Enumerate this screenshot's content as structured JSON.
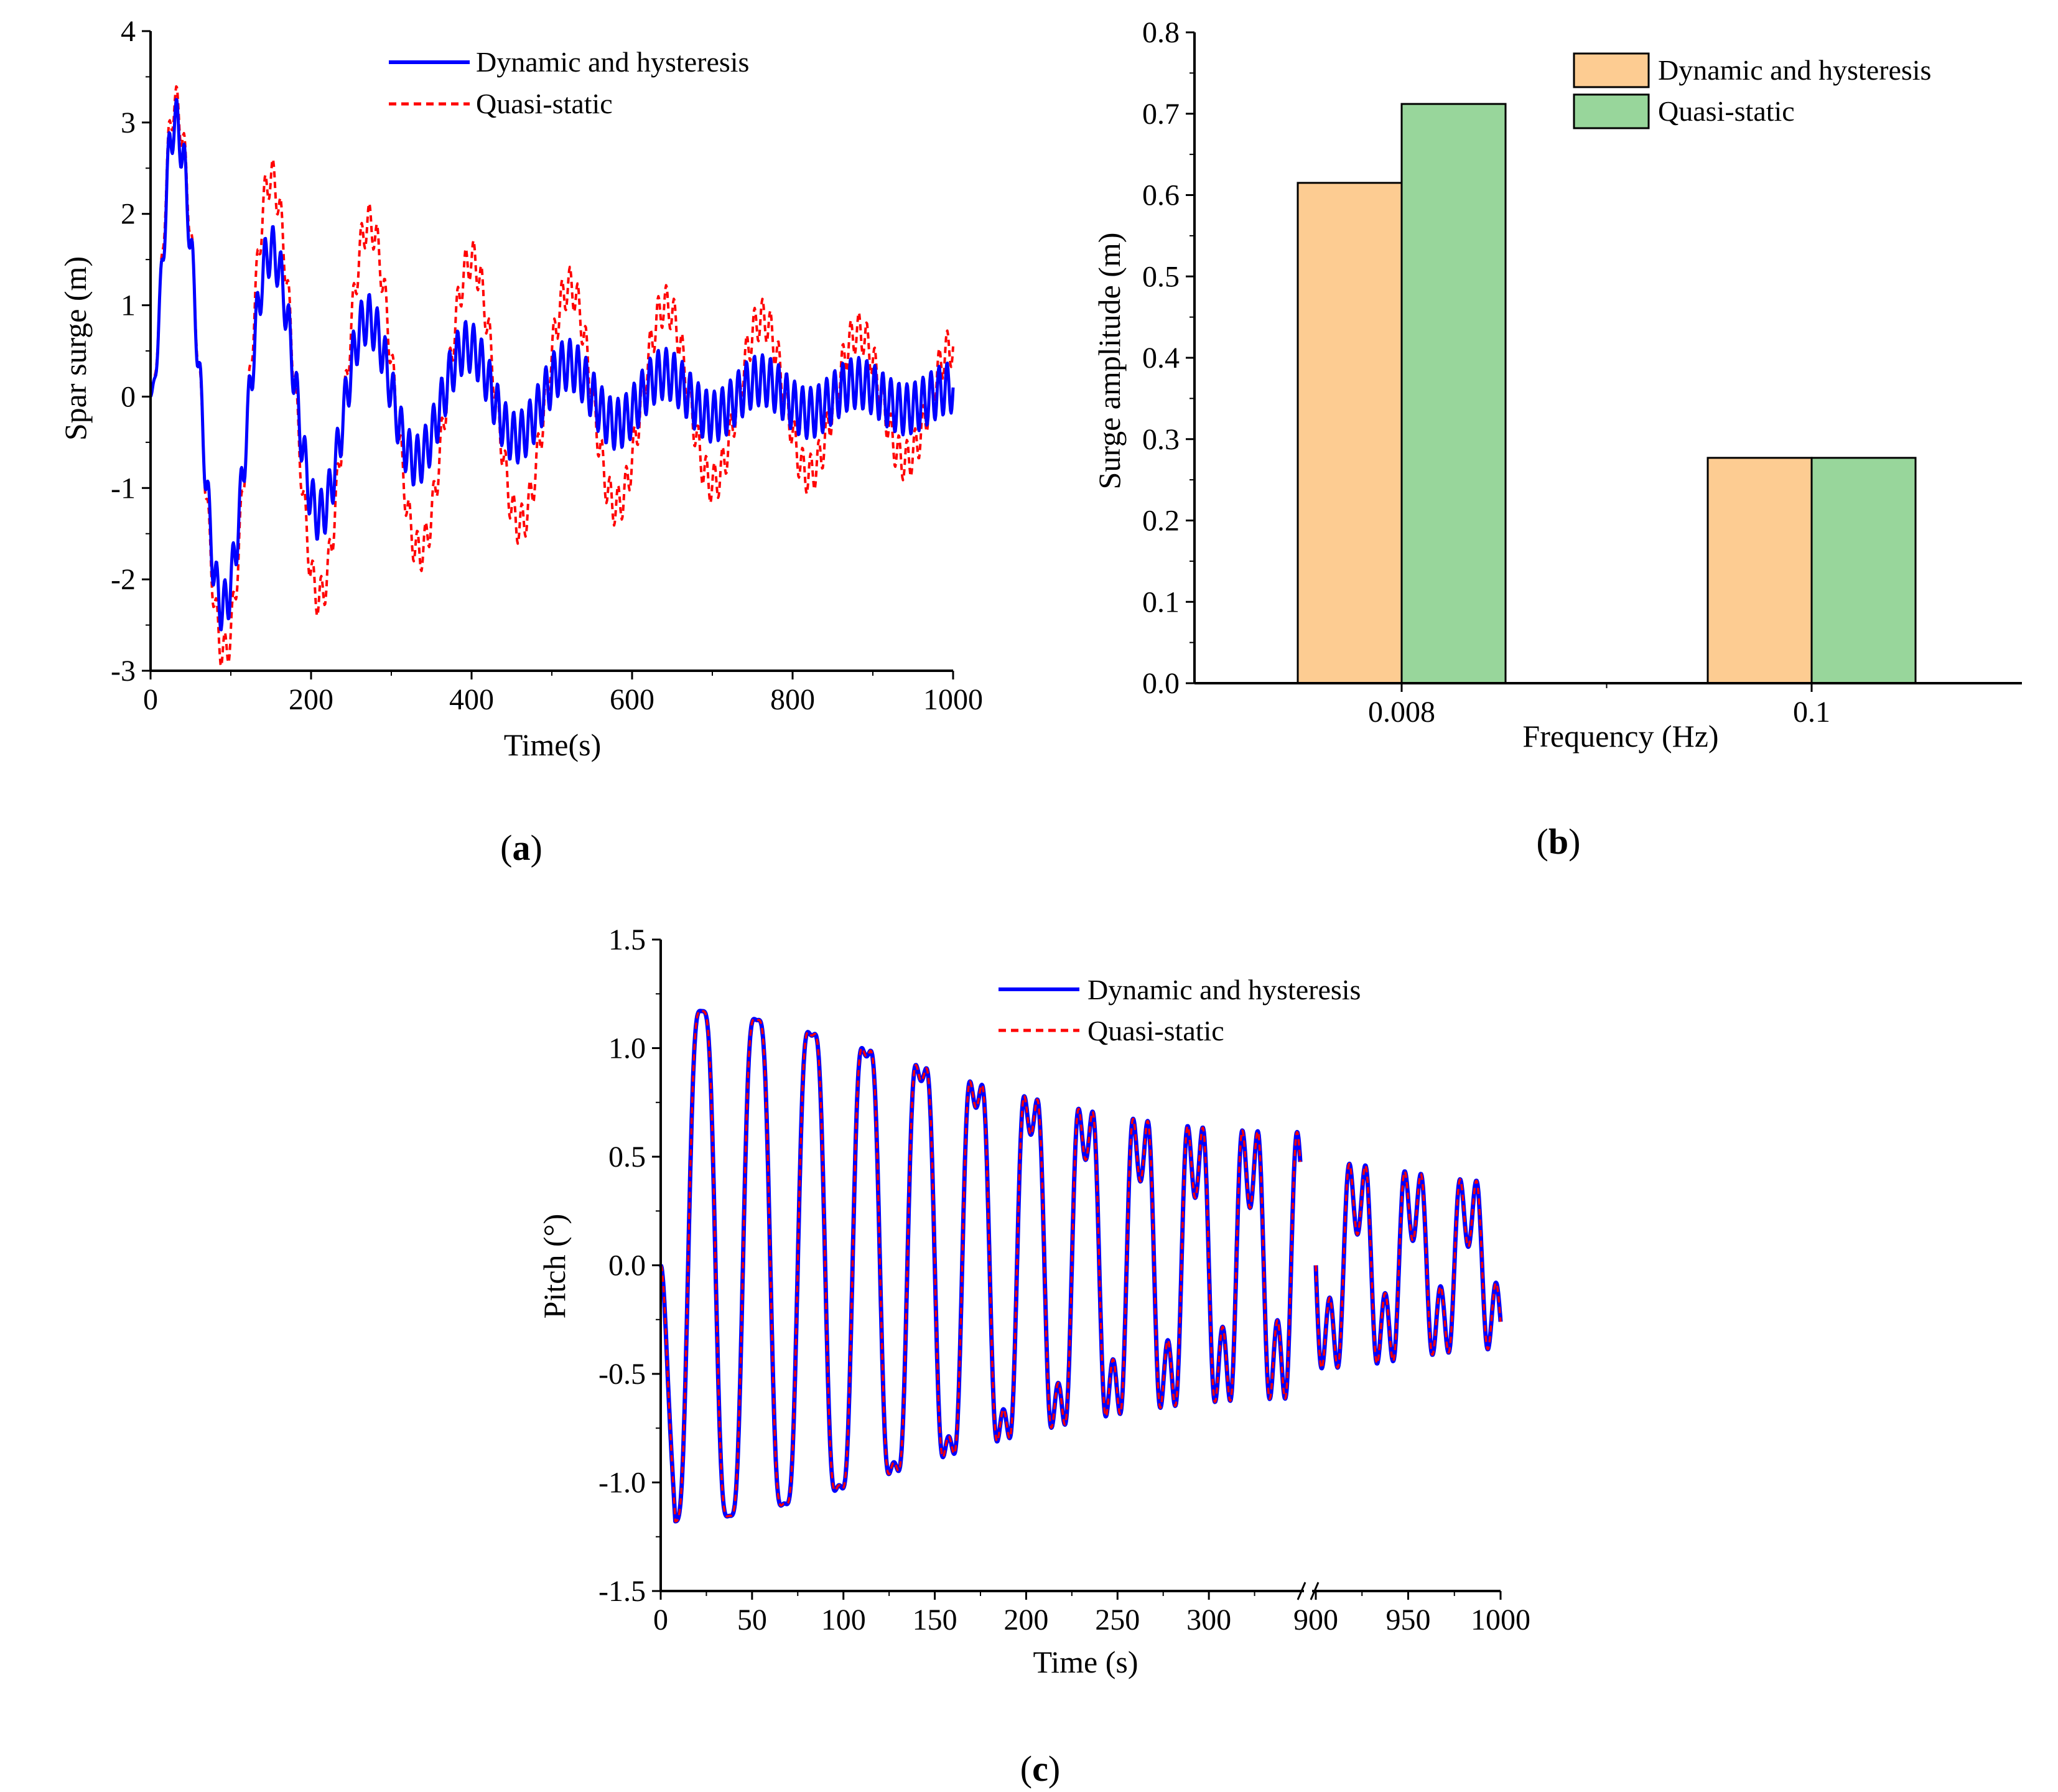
{
  "colors": {
    "dynamic_line": "#0000ff",
    "quasi_line": "#ff0000",
    "bar_dynamic": "#fdcc92",
    "bar_quasi": "#98d69b",
    "axis": "#000000"
  },
  "panel_labels": [
    "a",
    "b",
    "c"
  ],
  "chart_data": [
    {
      "type": "line",
      "panel": "a",
      "xlabel": "Time(s)",
      "ylabel": "Spar surge (m)",
      "xlim": [
        0,
        1000
      ],
      "ylim": [
        -3,
        4
      ],
      "xticks": [
        0,
        200,
        400,
        600,
        800,
        1000
      ],
      "yticks": [
        -3,
        -2,
        -1,
        0,
        1,
        2,
        3,
        4
      ],
      "legend_position": "top-right",
      "series": [
        {
          "name": "Dynamic and hysteresis",
          "style": "solid",
          "slow_envelope": [
            [
              0,
              0
            ],
            [
              30,
              3.0
            ],
            [
              90,
              -2.3
            ],
            [
              150,
              1.6
            ],
            [
              210,
              -1.3
            ],
            [
              270,
              0.85
            ],
            [
              330,
              -0.7
            ],
            [
              395,
              0.55
            ],
            [
              455,
              -0.45
            ],
            [
              520,
              0.35
            ],
            [
              580,
              -0.3
            ],
            [
              640,
              0.25
            ],
            [
              700,
              -0.22
            ],
            [
              760,
              0.18
            ],
            [
              820,
              -0.18
            ],
            [
              880,
              0.15
            ],
            [
              940,
              -0.14
            ],
            [
              1000,
              0.1
            ]
          ],
          "wave_amplitude": 0.28,
          "wave_period_s": 10
        },
        {
          "name": "Quasi-static",
          "style": "dashed",
          "slow_envelope": [
            [
              0,
              0
            ],
            [
              30,
              3.2
            ],
            [
              92,
              -2.8
            ],
            [
              150,
              2.4
            ],
            [
              210,
              -2.2
            ],
            [
              272,
              1.9
            ],
            [
              335,
              -1.7
            ],
            [
              400,
              1.5
            ],
            [
              460,
              -1.4
            ],
            [
              522,
              1.2
            ],
            [
              580,
              -1.2
            ],
            [
              642,
              1.0
            ],
            [
              700,
              -0.95
            ],
            [
              762,
              0.85
            ],
            [
              820,
              -0.85
            ],
            [
              882,
              0.7
            ],
            [
              940,
              -0.7
            ],
            [
              1000,
              0.55
            ]
          ],
          "wave_amplitude": 0.22,
          "wave_period_s": 10
        }
      ]
    },
    {
      "type": "bar",
      "panel": "b",
      "xlabel": "Frequency (Hz)",
      "ylabel": "Surge amplitude (m)",
      "categories": [
        "0.008",
        "0.1"
      ],
      "ylim": [
        0,
        0.8
      ],
      "yticks": [
        "0.0",
        "0.1",
        "0.2",
        "0.3",
        "0.4",
        "0.5",
        "0.6",
        "0.7",
        "0.8"
      ],
      "legend_position": "top-right",
      "series": [
        {
          "name": "Dynamic and hysteresis",
          "values": [
            0.615,
            0.277
          ]
        },
        {
          "name": "Quasi-static",
          "values": [
            0.712,
            0.277
          ]
        }
      ]
    },
    {
      "type": "line",
      "panel": "c",
      "xlabel": "Time (s)",
      "ylabel": "Pitch (°)",
      "ylim": [
        -1.5,
        1.5
      ],
      "yticks": [
        "-1.5",
        "-1.0",
        "-0.5",
        "0.0",
        "0.5",
        "1.0",
        "1.5"
      ],
      "x_segments": [
        [
          0,
          350
        ],
        [
          900,
          1000
        ]
      ],
      "xticks": [
        "0",
        "50",
        "100",
        "150",
        "200",
        "250",
        "300",
        "900",
        "950",
        "1000"
      ],
      "axis_break": true,
      "legend_position": "top-right",
      "series": [
        {
          "name": "Dynamic and hysteresis",
          "style": "solid"
        },
        {
          "name": "Quasi-static",
          "style": "dashed"
        }
      ],
      "primary_period_s": 30,
      "secondary_period_s": 10,
      "primary_amplitude": [
        [
          0,
          1.33
        ],
        [
          350,
          0.55
        ],
        [
          900,
          0.4
        ],
        [
          1000,
          0.3
        ]
      ],
      "secondary_amplitude": [
        [
          0,
          0.15
        ],
        [
          350,
          0.3
        ],
        [
          900,
          0.25
        ],
        [
          1000,
          0.22
        ]
      ]
    }
  ]
}
